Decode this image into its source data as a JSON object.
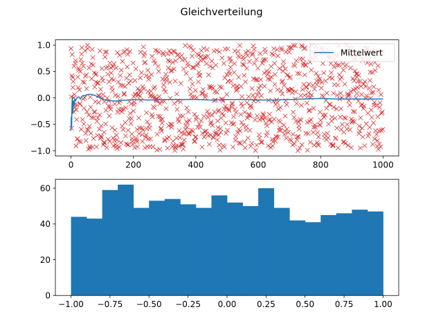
{
  "figure": {
    "suptitle": "Gleichverteilung"
  },
  "chart_data": [
    {
      "type": "line",
      "description_note_removed": true,
      "xlim": [
        -50,
        1050
      ],
      "ylim": [
        -1.1,
        1.1
      ],
      "xticks": [
        0,
        200,
        400,
        600,
        800,
        1000
      ],
      "xtick_labels": [
        "0",
        "200",
        "400",
        "600",
        "800",
        "1000"
      ],
      "yticks": [
        -1.0,
        -0.5,
        0.0,
        0.5,
        1.0
      ],
      "ytick_labels": [
        "−1.0",
        "−0.5",
        "0.0",
        "0.5",
        "1.0"
      ],
      "grid": false,
      "legend_position": "top-right",
      "legend": [
        {
          "name": "Mittelwert",
          "color": "#1f77b4"
        }
      ],
      "samples_marker": "x",
      "samples_color": "#d62728",
      "samples_count": 1000,
      "samples_range": [
        -1,
        1
      ],
      "series": [
        {
          "name": "Mittelwert",
          "color": "#1f77b4",
          "x": [
            0,
            1,
            2,
            3,
            4,
            5,
            6,
            8,
            10,
            12,
            15,
            20,
            25,
            30,
            35,
            40,
            45,
            50,
            60,
            70,
            80,
            90,
            100,
            110,
            120,
            140,
            160,
            180,
            200,
            250,
            300,
            350,
            400,
            450,
            500,
            550,
            600,
            650,
            700,
            750,
            800,
            850,
            900,
            950,
            1000
          ],
          "y": [
            -0.62,
            -0.35,
            -0.55,
            -0.2,
            0.02,
            -0.1,
            -0.3,
            -0.05,
            -0.15,
            -0.02,
            -0.05,
            0.01,
            0.02,
            -0.02,
            0.03,
            0.05,
            0.04,
            0.06,
            0.07,
            0.06,
            0.04,
            0.01,
            -0.02,
            -0.04,
            -0.05,
            -0.06,
            -0.05,
            -0.04,
            -0.03,
            -0.04,
            -0.03,
            -0.03,
            -0.03,
            -0.04,
            -0.03,
            -0.03,
            -0.04,
            -0.04,
            -0.03,
            -0.02,
            -0.01,
            -0.02,
            -0.02,
            -0.02,
            -0.02
          ]
        }
      ]
    },
    {
      "type": "bar",
      "subtype": "histogram",
      "color": "#1f77b4",
      "bin_edges": [
        -1.0,
        -0.9,
        -0.8,
        -0.7,
        -0.6,
        -0.5,
        -0.4,
        -0.3,
        -0.2,
        -0.1,
        0.0,
        0.1,
        0.2,
        0.3,
        0.4,
        0.5,
        0.6,
        0.7,
        0.8,
        0.9,
        1.0
      ],
      "values": [
        44,
        43,
        59,
        62,
        49,
        53,
        54,
        51,
        49,
        56,
        52,
        50,
        60,
        49,
        42,
        41,
        45,
        46,
        48,
        47
      ],
      "xlim": [
        -1.1,
        1.1
      ],
      "ylim": [
        0,
        65
      ],
      "xticks": [
        -1.0,
        -0.75,
        -0.5,
        -0.25,
        0.0,
        0.25,
        0.5,
        0.75,
        1.0
      ],
      "xtick_labels": [
        "−1.00",
        "−0.75",
        "−0.50",
        "−0.25",
        "0.00",
        "0.25",
        "0.50",
        "0.75",
        "1.00"
      ],
      "yticks": [
        0,
        20,
        40,
        60
      ],
      "ytick_labels": [
        "0",
        "20",
        "40",
        "60"
      ],
      "grid": false
    }
  ]
}
